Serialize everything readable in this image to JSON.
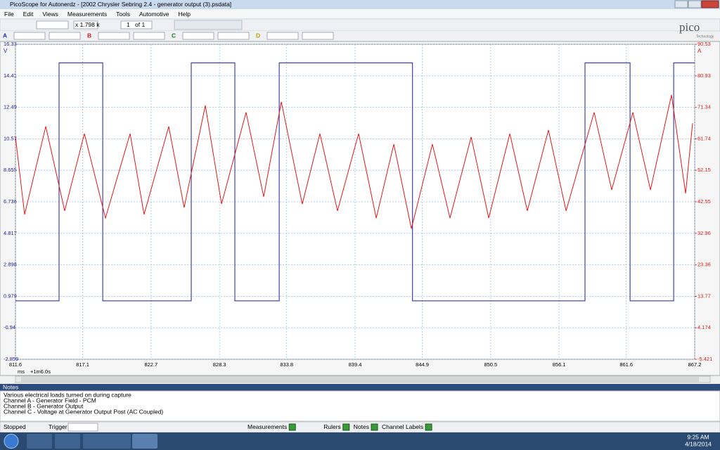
{
  "window": {
    "title": "PicoScope for Autonerdz - [2002 Chrysler Sebring 2.4 - generator output (3).psdata]"
  },
  "menu": [
    "File",
    "Edit",
    "Views",
    "Measurements",
    "Tools",
    "Automotive",
    "Help"
  ],
  "toolbar": {
    "zoom": "x 1.798 k",
    "page": "1",
    "page_count": "of 1"
  },
  "channels": [
    "A",
    "B",
    "C",
    "D"
  ],
  "logo": "pico",
  "logo_sub": "Technology",
  "chart_data": {
    "type": "line",
    "xlabel": "ms",
    "x_offset": "+1m6.0s",
    "y_unit": "V",
    "y2_unit": "A",
    "xlim": [
      811.6,
      867.2
    ],
    "xticks": [
      811.6,
      817.1,
      822.7,
      828.3,
      833.8,
      839.4,
      844.9,
      850.5,
      856.1,
      861.6,
      867.2
    ],
    "ylim": [
      -2.859,
      16.33
    ],
    "yticks": [
      16.33,
      14.41,
      12.49,
      10.57,
      8.655,
      6.736,
      4.817,
      2.898,
      0.979,
      -0.94,
      -2.859
    ],
    "y2lim": [
      -5.421,
      90.53
    ],
    "y2ticks": [
      90.53,
      80.93,
      71.34,
      61.74,
      52.15,
      42.55,
      32.96,
      23.36,
      13.77,
      4.174,
      -5.421
    ],
    "grid": true,
    "series": [
      {
        "color": "#1c1ca8",
        "x": [
          811.6,
          815.17,
          815.17,
          818.74,
          818.74,
          825.99,
          825.99,
          829.56,
          829.56,
          833.19,
          833.19,
          844.1,
          844.1,
          858.22,
          858.22,
          861.91,
          861.91,
          865.48,
          865.48,
          867.2
        ],
        "values": [
          0.7,
          0.7,
          15.2,
          15.2,
          0.7,
          0.7,
          15.2,
          15.2,
          0.7,
          0.7,
          15.2,
          15.2,
          0.7,
          0.7,
          15.2,
          15.2,
          0.7,
          0.7,
          15.2,
          15.2
        ]
      },
      {
        "color": "#e01818",
        "axis": "y2",
        "x": [
          811.6,
          812.35,
          814.08,
          815.63,
          817.24,
          818.97,
          820.98,
          822.13,
          824.15,
          825.41,
          827.14,
          828.47,
          830.48,
          831.92,
          833.36,
          835.08,
          836.52,
          837.96,
          839.69,
          841.13,
          842.57,
          844.01,
          845.73,
          847.17,
          848.9,
          850.34,
          852.07,
          853.5,
          855.23,
          856.67,
          858.97,
          860.41,
          862.14,
          863.58,
          865.3,
          866.46,
          867.03
        ],
        "values": [
          62.3,
          38.7,
          65.5,
          39.8,
          63.3,
          37.6,
          63.3,
          38.7,
          65.5,
          40.8,
          71.9,
          41.9,
          69.8,
          44.1,
          73.0,
          41.9,
          63.3,
          39.8,
          63.3,
          37.6,
          60.1,
          34.4,
          60.1,
          37.6,
          62.3,
          37.6,
          63.3,
          39.8,
          64.4,
          39.8,
          69.8,
          46.2,
          69.8,
          46.2,
          75.1,
          45.1,
          66.5
        ]
      }
    ]
  },
  "notes": {
    "title": "Notes",
    "lines": [
      "Various electrical loads turned on during capture",
      "Channel A - Generator Field - PCM",
      "Channel B - Generator Output",
      "Channel C - Voltage at Generator Output Post (AC Coupled)"
    ]
  },
  "status": {
    "state": "Stopped",
    "trigger": "Trigger",
    "buttons": [
      "Measurements",
      "Rulers",
      "Notes",
      "Channel Labels"
    ]
  },
  "taskbar": {
    "time": "9:25 AM",
    "date": "4/18/2014"
  }
}
